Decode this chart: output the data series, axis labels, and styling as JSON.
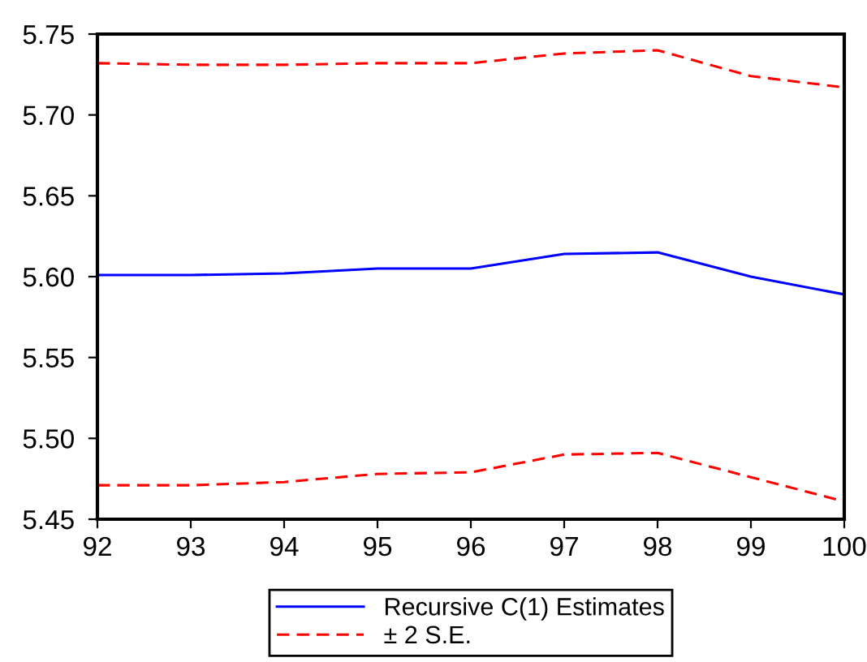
{
  "chart_data": {
    "type": "line",
    "x": [
      92,
      93,
      94,
      95,
      96,
      97,
      98,
      99,
      100
    ],
    "series": [
      {
        "name": "Recursive C(1) Estimates",
        "color": "#0000ff",
        "line_style": "solid",
        "values": [
          5.601,
          5.601,
          5.602,
          5.605,
          5.605,
          5.614,
          5.615,
          5.6,
          5.589
        ]
      },
      {
        "name": "± 2 S.E.",
        "color": "#ff0000",
        "line_style": "dashed",
        "values": [
          5.732,
          5.731,
          5.731,
          5.732,
          5.732,
          5.738,
          5.74,
          5.724,
          5.717
        ]
      },
      {
        "color": "#ff0000",
        "line_style": "dashed",
        "values": [
          5.471,
          5.471,
          5.473,
          5.478,
          5.479,
          5.49,
          5.491,
          5.476,
          5.461
        ]
      }
    ],
    "xlim": [
      92,
      100
    ],
    "xticks": [
      92,
      93,
      94,
      95,
      96,
      97,
      98,
      99,
      100
    ],
    "ylim": [
      5.45,
      5.75
    ],
    "yticks": [
      {
        "value": 5.45,
        "label": "5.45"
      },
      {
        "value": 5.5,
        "label": "5.50"
      },
      {
        "value": 5.55,
        "label": "5.55"
      },
      {
        "value": 5.6,
        "label": "5.60"
      },
      {
        "value": 5.65,
        "label": "5.65"
      },
      {
        "value": 5.7,
        "label": "5.70"
      },
      {
        "value": 5.75,
        "label": "5.75"
      }
    ],
    "grid": false,
    "legend": "bottom"
  }
}
